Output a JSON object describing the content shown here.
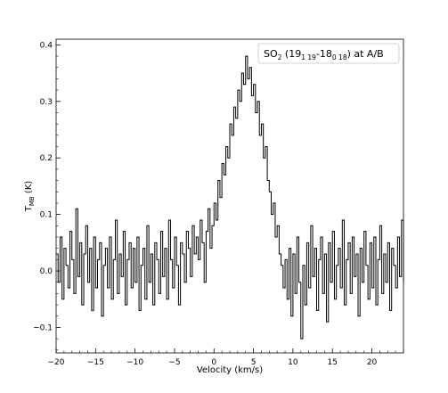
{
  "chart_data": {
    "type": "line",
    "style": "step",
    "legend": {
      "parts": [
        "SO",
        "2",
        " (19",
        "1 19",
        "-18",
        "0 18",
        ") at A/B"
      ],
      "placement": "top-right"
    },
    "xlabel": "Velocity (km/s)",
    "ylabel": {
      "main": "T",
      "sub": "MB",
      "rest": " (K)"
    },
    "xlim": [
      -20,
      24
    ],
    "ylim": [
      -0.145,
      0.41
    ],
    "x_ticks": [
      -20,
      -15,
      -10,
      -5,
      0,
      5,
      10,
      15,
      20
    ],
    "y_ticks": [
      -0.1,
      0.0,
      0.1,
      0.2,
      0.3,
      0.4
    ],
    "x_tick_labels": [
      "−20",
      "−15",
      "−10",
      "−5",
      "0",
      "5",
      "10",
      "15",
      "20"
    ],
    "y_tick_labels": [
      "−0.1",
      "0.0",
      "0.1",
      "0.2",
      "0.3",
      "0.4"
    ],
    "grid": false,
    "line_color": "#000000",
    "series": [
      {
        "x": [
          -20.0,
          -19.75,
          -19.5,
          -19.25,
          -19.0,
          -18.75,
          -18.5,
          -18.25,
          -18.0,
          -17.75,
          -17.5,
          -17.25,
          -17.0,
          -16.75,
          -16.5,
          -16.25,
          -16.0,
          -15.75,
          -15.5,
          -15.25,
          -15.0,
          -14.75,
          -14.5,
          -14.25,
          -14.0,
          -13.75,
          -13.5,
          -13.25,
          -13.0,
          -12.75,
          -12.5,
          -12.25,
          -12.0,
          -11.75,
          -11.5,
          -11.25,
          -11.0,
          -10.75,
          -10.5,
          -10.25,
          -10.0,
          -9.75,
          -9.5,
          -9.25,
          -9.0,
          -8.75,
          -8.5,
          -8.25,
          -8.0,
          -7.75,
          -7.5,
          -7.25,
          -7.0,
          -6.75,
          -6.5,
          -6.25,
          -6.0,
          -5.75,
          -5.5,
          -5.25,
          -5.0,
          -4.75,
          -4.5,
          -4.25,
          -4.0,
          -3.75,
          -3.5,
          -3.25,
          -3.0,
          -2.75,
          -2.5,
          -2.25,
          -2.0,
          -1.75,
          -1.5,
          -1.25,
          -1.0,
          -0.75,
          -0.5,
          -0.25,
          0.0,
          0.25,
          0.5,
          0.75,
          1.0,
          1.25,
          1.5,
          1.75,
          2.0,
          2.25,
          2.5,
          2.75,
          3.0,
          3.25,
          3.5,
          3.75,
          4.0,
          4.25,
          4.5,
          4.75,
          5.0,
          5.25,
          5.5,
          5.75,
          6.0,
          6.25,
          6.5,
          6.75,
          7.0,
          7.25,
          7.5,
          7.75,
          8.0,
          8.25,
          8.5,
          8.75,
          9.0,
          9.25,
          9.5,
          9.75,
          10.0,
          10.25,
          10.5,
          10.75,
          11.0,
          11.25,
          11.5,
          11.75,
          12.0,
          12.25,
          12.5,
          12.75,
          13.0,
          13.25,
          13.5,
          13.75,
          14.0,
          14.25,
          14.5,
          14.75,
          15.0,
          15.25,
          15.5,
          15.75,
          16.0,
          16.25,
          16.5,
          16.75,
          17.0,
          17.25,
          17.5,
          17.75,
          18.0,
          18.25,
          18.5,
          18.75,
          19.0,
          19.25,
          19.5,
          19.75,
          20.0,
          20.25,
          20.5,
          20.75,
          21.0,
          21.25,
          21.5,
          21.75,
          22.0,
          22.25,
          22.5,
          22.75,
          23.0,
          23.25,
          23.5,
          23.75,
          24.0
        ],
        "y": [
          0.03,
          -0.02,
          0.06,
          -0.05,
          0.04,
          0.01,
          -0.03,
          0.07,
          0.02,
          -0.04,
          0.11,
          -0.01,
          0.05,
          -0.06,
          0.03,
          0.08,
          -0.02,
          0.04,
          -0.07,
          0.06,
          -0.03,
          0.02,
          0.05,
          -0.08,
          0.01,
          0.04,
          -0.03,
          0.06,
          -0.05,
          0.02,
          0.09,
          -0.04,
          0.03,
          -0.01,
          0.07,
          -0.06,
          0.02,
          0.05,
          -0.03,
          0.04,
          -0.02,
          0.06,
          -0.07,
          0.01,
          0.04,
          -0.05,
          0.08,
          -0.02,
          0.03,
          -0.06,
          0.05,
          0.02,
          -0.04,
          0.07,
          -0.01,
          0.04,
          -0.05,
          0.09,
          0.02,
          -0.03,
          0.06,
          0.01,
          -0.06,
          0.05,
          0.03,
          -0.02,
          0.07,
          0.04,
          -0.01,
          0.08,
          0.03,
          0.06,
          0.02,
          0.09,
          0.05,
          -0.02,
          0.07,
          0.11,
          0.04,
          0.08,
          0.12,
          0.09,
          0.16,
          0.13,
          0.19,
          0.17,
          0.22,
          0.2,
          0.26,
          0.24,
          0.29,
          0.27,
          0.32,
          0.3,
          0.35,
          0.33,
          0.38,
          0.34,
          0.36,
          0.31,
          0.33,
          0.28,
          0.3,
          0.24,
          0.26,
          0.2,
          0.22,
          0.16,
          0.14,
          0.1,
          0.12,
          0.06,
          0.08,
          0.03,
          0.01,
          -0.03,
          0.02,
          -0.05,
          0.04,
          -0.08,
          0.03,
          -0.04,
          0.06,
          -0.02,
          -0.12,
          0.01,
          -0.06,
          0.05,
          -0.03,
          0.08,
          -0.01,
          0.04,
          -0.07,
          0.02,
          0.06,
          -0.04,
          0.03,
          -0.09,
          0.05,
          -0.02,
          0.07,
          -0.05,
          0.01,
          0.04,
          -0.03,
          0.09,
          -0.06,
          0.02,
          0.05,
          -0.04,
          0.06,
          -0.01,
          0.03,
          -0.08,
          0.04,
          -0.02,
          0.07,
          0.01,
          -0.05,
          0.05,
          -0.03,
          0.06,
          -0.06,
          0.02,
          0.08,
          -0.04,
          0.03,
          -0.02,
          0.05,
          -0.07,
          0.04,
          0.01,
          -0.03,
          0.06,
          -0.01,
          0.09,
          -0.02
        ]
      }
    ]
  }
}
